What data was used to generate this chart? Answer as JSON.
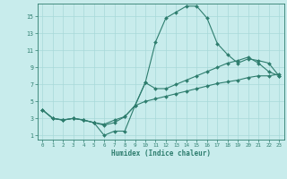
{
  "xlabel": "Humidex (Indice chaleur)",
  "bg_color": "#c8ecec",
  "grid_color": "#a8d8d8",
  "line_color": "#2e7d6e",
  "xlim": [
    -0.5,
    23.5
  ],
  "ylim": [
    0.5,
    16.5
  ],
  "xticks": [
    0,
    1,
    2,
    3,
    4,
    5,
    6,
    7,
    8,
    9,
    10,
    11,
    12,
    13,
    14,
    15,
    16,
    17,
    18,
    19,
    20,
    21,
    22,
    23
  ],
  "yticks": [
    1,
    3,
    5,
    7,
    9,
    11,
    13,
    15
  ],
  "line1_x": [
    0,
    1,
    2,
    3,
    4,
    5,
    6,
    7,
    8,
    9,
    10,
    11,
    12,
    13,
    14,
    15,
    16,
    17,
    18,
    19,
    20,
    21,
    22,
    23
  ],
  "line1_y": [
    4.0,
    3.0,
    2.8,
    3.0,
    2.8,
    2.5,
    1.0,
    1.5,
    1.5,
    4.5,
    7.2,
    12.0,
    14.8,
    15.5,
    16.2,
    16.2,
    14.8,
    11.8,
    10.5,
    9.5,
    10.0,
    9.8,
    9.5,
    8.0
  ],
  "line2_x": [
    0,
    1,
    2,
    3,
    4,
    5,
    6,
    7,
    8,
    9,
    10,
    11,
    12,
    13,
    14,
    15,
    16,
    17,
    18,
    19,
    20,
    21,
    22,
    23
  ],
  "line2_y": [
    4.0,
    3.0,
    2.8,
    3.0,
    2.8,
    2.5,
    2.2,
    2.5,
    3.2,
    4.5,
    7.2,
    6.5,
    6.5,
    7.0,
    7.5,
    8.0,
    8.5,
    9.0,
    9.5,
    9.8,
    10.2,
    9.5,
    8.5,
    8.0
  ],
  "line3_x": [
    0,
    1,
    2,
    3,
    4,
    5,
    6,
    7,
    8,
    9,
    10,
    11,
    12,
    13,
    14,
    15,
    16,
    17,
    18,
    19,
    20,
    21,
    22,
    23
  ],
  "line3_y": [
    4.0,
    3.0,
    2.8,
    3.0,
    2.8,
    2.5,
    2.3,
    2.8,
    3.2,
    4.5,
    5.0,
    5.3,
    5.6,
    5.9,
    6.2,
    6.5,
    6.8,
    7.1,
    7.3,
    7.5,
    7.8,
    8.0,
    8.0,
    8.2
  ]
}
